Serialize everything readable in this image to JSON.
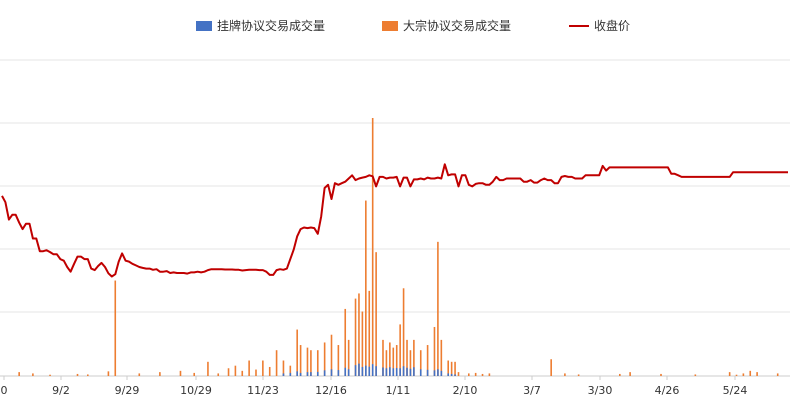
{
  "chart_data": {
    "type": "bar+line",
    "title": "",
    "xlabel": "",
    "ylabel": "",
    "legend": {
      "placement": "top-center",
      "items": [
        {
          "key": "listed",
          "label": "挂牌协议交易成交量",
          "color": "#4472c4",
          "shape": "rect"
        },
        {
          "key": "block",
          "label": "大宗协议交易成交量",
          "color": "#ed7d31",
          "shape": "rect"
        },
        {
          "key": "close",
          "label": "收盘价",
          "color": "#c00000",
          "shape": "line"
        }
      ]
    },
    "x_ticks": [
      "0",
      "9/2",
      "9/29",
      "10/29",
      "11/23",
      "12/16",
      "1/11",
      "2/10",
      "3/7",
      "3/30",
      "4/26",
      "5/24"
    ],
    "grid": true,
    "series": [
      {
        "key": "close",
        "type": "line",
        "color": "#c00000",
        "values": [
          5.7,
          5.5,
          4.95,
          5.1,
          5.1,
          4.85,
          4.65,
          4.82,
          4.82,
          4.35,
          4.35,
          3.95,
          3.95,
          3.98,
          3.92,
          3.85,
          3.85,
          3.7,
          3.65,
          3.45,
          3.3,
          3.55,
          3.78,
          3.78,
          3.7,
          3.7,
          3.4,
          3.35,
          3.48,
          3.58,
          3.45,
          3.25,
          3.15,
          3.22,
          3.62,
          3.88,
          3.65,
          3.62,
          3.55,
          3.5,
          3.45,
          3.42,
          3.4,
          3.4,
          3.36,
          3.38,
          3.3,
          3.3,
          3.32,
          3.26,
          3.28,
          3.26,
          3.26,
          3.26,
          3.24,
          3.28,
          3.28,
          3.3,
          3.28,
          3.3,
          3.35,
          3.38,
          3.38,
          3.38,
          3.38,
          3.37,
          3.37,
          3.37,
          3.36,
          3.36,
          3.34,
          3.35,
          3.36,
          3.36,
          3.36,
          3.35,
          3.35,
          3.3,
          3.2,
          3.2,
          3.35,
          3.38,
          3.36,
          3.4,
          3.7,
          4.0,
          4.42,
          4.65,
          4.7,
          4.68,
          4.7,
          4.68,
          4.5,
          5.05,
          5.95,
          6.05,
          5.6,
          6.1,
          6.05,
          6.1,
          6.15,
          6.25,
          6.35,
          6.2,
          6.25,
          6.28,
          6.3,
          6.35,
          6.32,
          6.0,
          6.3,
          6.3,
          6.25,
          6.28,
          6.28,
          6.3,
          6.0,
          6.28,
          6.28,
          6.0,
          6.22,
          6.22,
          6.25,
          6.22,
          6.28,
          6.25,
          6.25,
          6.28,
          6.25,
          6.7,
          6.35,
          6.38,
          6.38,
          6.0,
          6.35,
          6.35,
          6.05,
          6.0,
          6.08,
          6.1,
          6.1,
          6.05,
          6.05,
          6.15,
          6.3,
          6.2,
          6.2,
          6.25,
          6.25,
          6.25,
          6.25,
          6.25,
          6.15,
          6.15,
          6.2,
          6.12,
          6.12,
          6.2,
          6.25,
          6.2,
          6.2,
          6.1,
          6.1,
          6.3,
          6.33,
          6.3,
          6.3,
          6.25,
          6.25,
          6.25,
          6.35,
          6.35,
          6.35,
          6.35,
          6.35,
          6.65,
          6.5,
          6.6,
          6.6,
          6.6,
          6.6,
          6.6,
          6.6,
          6.6,
          6.6,
          6.6,
          6.6,
          6.6,
          6.6,
          6.6,
          6.6,
          6.6,
          6.6,
          6.6,
          6.6,
          6.4,
          6.4,
          6.35,
          6.3,
          6.3,
          6.3,
          6.3,
          6.3,
          6.3,
          6.3,
          6.3,
          6.3,
          6.3,
          6.3,
          6.3,
          6.3,
          6.3,
          6.3,
          6.45,
          6.45,
          6.45,
          6.45,
          6.45,
          6.45,
          6.45,
          6.45,
          6.45,
          6.45,
          6.45,
          6.45,
          6.45,
          6.45,
          6.45,
          6.45,
          6.45
        ]
      },
      {
        "key": "block",
        "type": "bar",
        "color": "#ed7d31",
        "bars": [
          {
            "i": 5,
            "v": 1.5
          },
          {
            "i": 9,
            "v": 1.0
          },
          {
            "i": 14,
            "v": 0.5
          },
          {
            "i": 22,
            "v": 0.8
          },
          {
            "i": 25,
            "v": 0.6
          },
          {
            "i": 31,
            "v": 1.8
          },
          {
            "i": 33,
            "v": 37
          },
          {
            "i": 40,
            "v": 1.0
          },
          {
            "i": 46,
            "v": 1.5
          },
          {
            "i": 52,
            "v": 2.0
          },
          {
            "i": 56,
            "v": 1.2
          },
          {
            "i": 60,
            "v": 5.5
          },
          {
            "i": 63,
            "v": 1.0
          },
          {
            "i": 66,
            "v": 3.0
          },
          {
            "i": 68,
            "v": 4.0
          },
          {
            "i": 70,
            "v": 2.0
          },
          {
            "i": 72,
            "v": 6.0
          },
          {
            "i": 74,
            "v": 2.5
          },
          {
            "i": 76,
            "v": 6.0
          },
          {
            "i": 78,
            "v": 3.5
          },
          {
            "i": 80,
            "v": 10
          },
          {
            "i": 82,
            "v": 6.0
          },
          {
            "i": 84,
            "v": 4.0
          },
          {
            "i": 86,
            "v": 18
          },
          {
            "i": 87,
            "v": 12
          },
          {
            "i": 89,
            "v": 11
          },
          {
            "i": 90,
            "v": 10
          },
          {
            "i": 92,
            "v": 10
          },
          {
            "i": 94,
            "v": 13
          },
          {
            "i": 96,
            "v": 16
          },
          {
            "i": 98,
            "v": 12
          },
          {
            "i": 100,
            "v": 26
          },
          {
            "i": 101,
            "v": 14
          },
          {
            "i": 103,
            "v": 30
          },
          {
            "i": 104,
            "v": 32
          },
          {
            "i": 105,
            "v": 25
          },
          {
            "i": 106,
            "v": 68
          },
          {
            "i": 107,
            "v": 33
          },
          {
            "i": 108,
            "v": 100
          },
          {
            "i": 109,
            "v": 48
          },
          {
            "i": 111,
            "v": 14
          },
          {
            "i": 112,
            "v": 10
          },
          {
            "i": 113,
            "v": 13
          },
          {
            "i": 114,
            "v": 11
          },
          {
            "i": 115,
            "v": 12
          },
          {
            "i": 116,
            "v": 20
          },
          {
            "i": 117,
            "v": 34
          },
          {
            "i": 118,
            "v": 14
          },
          {
            "i": 119,
            "v": 10
          },
          {
            "i": 120,
            "v": 14
          },
          {
            "i": 122,
            "v": 10
          },
          {
            "i": 124,
            "v": 12
          },
          {
            "i": 126,
            "v": 19
          },
          {
            "i": 127,
            "v": 52
          },
          {
            "i": 128,
            "v": 14
          },
          {
            "i": 130,
            "v": 6.0
          },
          {
            "i": 131,
            "v": 5.5
          },
          {
            "i": 132,
            "v": 5.5
          },
          {
            "i": 133,
            "v": 1.5
          },
          {
            "i": 136,
            "v": 1.0
          },
          {
            "i": 138,
            "v": 1.2
          },
          {
            "i": 140,
            "v": 0.8
          },
          {
            "i": 142,
            "v": 1.0
          },
          {
            "i": 160,
            "v": 6.5
          },
          {
            "i": 164,
            "v": 1.0
          },
          {
            "i": 168,
            "v": 0.6
          },
          {
            "i": 180,
            "v": 0.8
          },
          {
            "i": 183,
            "v": 1.5
          },
          {
            "i": 192,
            "v": 0.8
          },
          {
            "i": 202,
            "v": 0.6
          },
          {
            "i": 212,
            "v": 1.5
          },
          {
            "i": 214,
            "v": 0.5
          },
          {
            "i": 216,
            "v": 1.0
          },
          {
            "i": 218,
            "v": 2.0
          },
          {
            "i": 220,
            "v": 1.5
          },
          {
            "i": 226,
            "v": 1.0
          },
          {
            "i": 232,
            "v": 1.0
          },
          {
            "i": 233,
            "v": 2.0
          },
          {
            "i": 235,
            "v": 1.0
          },
          {
            "i": 238,
            "v": 2.5
          },
          {
            "i": 244,
            "v": 1.5
          },
          {
            "i": 246,
            "v": 0.5
          }
        ]
      },
      {
        "key": "listed",
        "type": "bar",
        "color": "#4472c4",
        "bars": [
          {
            "i": 82,
            "v": 1.0
          },
          {
            "i": 84,
            "v": 1.2
          },
          {
            "i": 86,
            "v": 1.8
          },
          {
            "i": 87,
            "v": 1.2
          },
          {
            "i": 89,
            "v": 1.5
          },
          {
            "i": 90,
            "v": 1.5
          },
          {
            "i": 92,
            "v": 1.6
          },
          {
            "i": 94,
            "v": 2.2
          },
          {
            "i": 96,
            "v": 2.6
          },
          {
            "i": 98,
            "v": 2.3
          },
          {
            "i": 100,
            "v": 3.2
          },
          {
            "i": 101,
            "v": 2.6
          },
          {
            "i": 103,
            "v": 4.2
          },
          {
            "i": 104,
            "v": 4.8
          },
          {
            "i": 105,
            "v": 3.5
          },
          {
            "i": 106,
            "v": 4.0
          },
          {
            "i": 107,
            "v": 3.6
          },
          {
            "i": 108,
            "v": 4.6
          },
          {
            "i": 109,
            "v": 3.8
          },
          {
            "i": 111,
            "v": 3.3
          },
          {
            "i": 112,
            "v": 3.0
          },
          {
            "i": 113,
            "v": 3.4
          },
          {
            "i": 114,
            "v": 3.0
          },
          {
            "i": 115,
            "v": 3.1
          },
          {
            "i": 116,
            "v": 3.0
          },
          {
            "i": 117,
            "v": 3.8
          },
          {
            "i": 118,
            "v": 3.2
          },
          {
            "i": 119,
            "v": 2.8
          },
          {
            "i": 120,
            "v": 3.4
          },
          {
            "i": 122,
            "v": 2.6
          },
          {
            "i": 124,
            "v": 2.4
          },
          {
            "i": 126,
            "v": 2.2
          },
          {
            "i": 127,
            "v": 2.6
          },
          {
            "i": 128,
            "v": 2.0
          },
          {
            "i": 130,
            "v": 1.0
          },
          {
            "i": 131,
            "v": 0.8
          },
          {
            "i": 132,
            "v": 0.6
          }
        ]
      }
    ]
  }
}
